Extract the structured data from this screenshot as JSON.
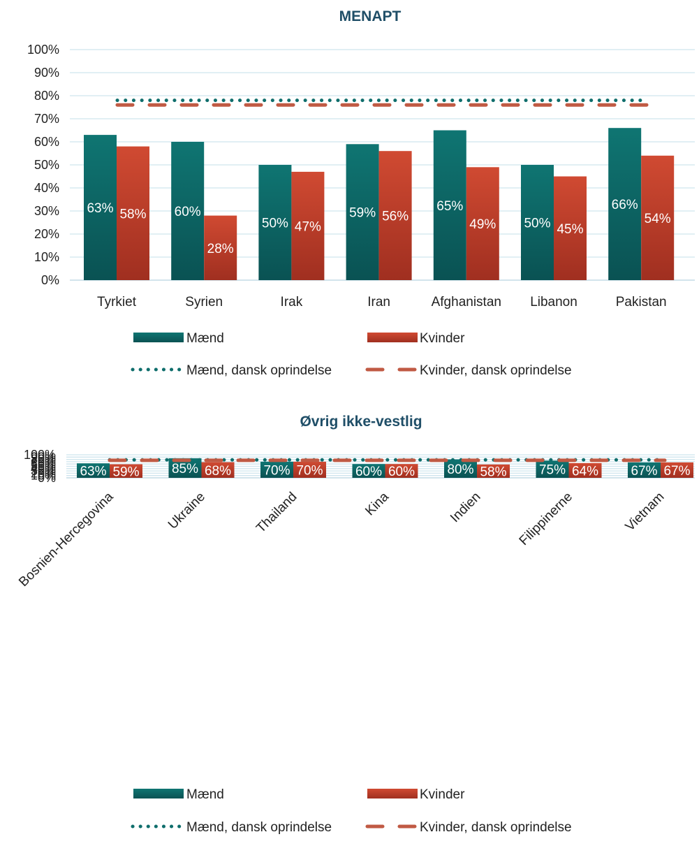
{
  "colors": {
    "men": "#0f6e6c",
    "men_dark": "#0a5354",
    "women": "#c8452f",
    "women_dark": "#a0301f",
    "men_ref": "#0f6e6c",
    "women_ref": "#c05a44",
    "grid": "#cfe5ee"
  },
  "chart_data": [
    {
      "type": "bar",
      "title": "MENAPT",
      "categories": [
        "Tyrkiet",
        "Syrien",
        "Irak",
        "Iran",
        "Afghanistan",
        "Libanon",
        "Pakistan"
      ],
      "series": [
        {
          "name": "Mænd",
          "values": [
            63,
            60,
            50,
            59,
            65,
            50,
            66
          ],
          "labels": [
            "63%",
            "60%",
            "50%",
            "59%",
            "65%",
            "50%",
            "66%"
          ]
        },
        {
          "name": "Kvinder",
          "values": [
            58,
            28,
            47,
            56,
            49,
            45,
            54
          ],
          "labels": [
            "58%",
            "28%",
            "47%",
            "56%",
            "49%",
            "45%",
            "54%"
          ]
        }
      ],
      "reference_lines": [
        {
          "name": "Mænd, dansk oprindelse",
          "value": 78,
          "style": "dotted"
        },
        {
          "name": "Kvinder, dansk oprindelse",
          "value": 76,
          "style": "dashed"
        }
      ],
      "yticks": [
        "0%",
        "10%",
        "20%",
        "30%",
        "40%",
        "50%",
        "60%",
        "70%",
        "80%",
        "90%",
        "100%"
      ],
      "ylim": [
        0,
        100
      ],
      "grid": true,
      "legend": "bottom"
    },
    {
      "type": "bar",
      "title": "Øvrig ikke-vestlig",
      "categories": [
        "Bosnien-Hercegovina",
        "Ukraine",
        "Thailand",
        "Kina",
        "Indien",
        "Filippinerne",
        "Vietnam"
      ],
      "series": [
        {
          "name": "Mænd",
          "values": [
            63,
            85,
            70,
            60,
            80,
            75,
            67
          ],
          "labels": [
            "63%",
            "85%",
            "70%",
            "60%",
            "80%",
            "75%",
            "67%"
          ]
        },
        {
          "name": "Kvinder",
          "values": [
            59,
            68,
            70,
            60,
            58,
            64,
            67
          ],
          "labels": [
            "59%",
            "68%",
            "70%",
            "60%",
            "58%",
            "64%",
            "67%"
          ]
        }
      ],
      "reference_lines": [
        {
          "name": "Mænd, dansk oprindelse",
          "value": 78,
          "style": "dotted"
        },
        {
          "name": "Kvinder, dansk oprindelse",
          "value": 76,
          "style": "dashed"
        }
      ],
      "yticks": [
        "0%",
        "10%",
        "20%",
        "30%",
        "40%",
        "50%",
        "60%",
        "70%",
        "80%",
        "90%",
        "100%"
      ],
      "ylim": [
        0,
        100
      ],
      "grid": true,
      "legend": "bottom"
    }
  ]
}
